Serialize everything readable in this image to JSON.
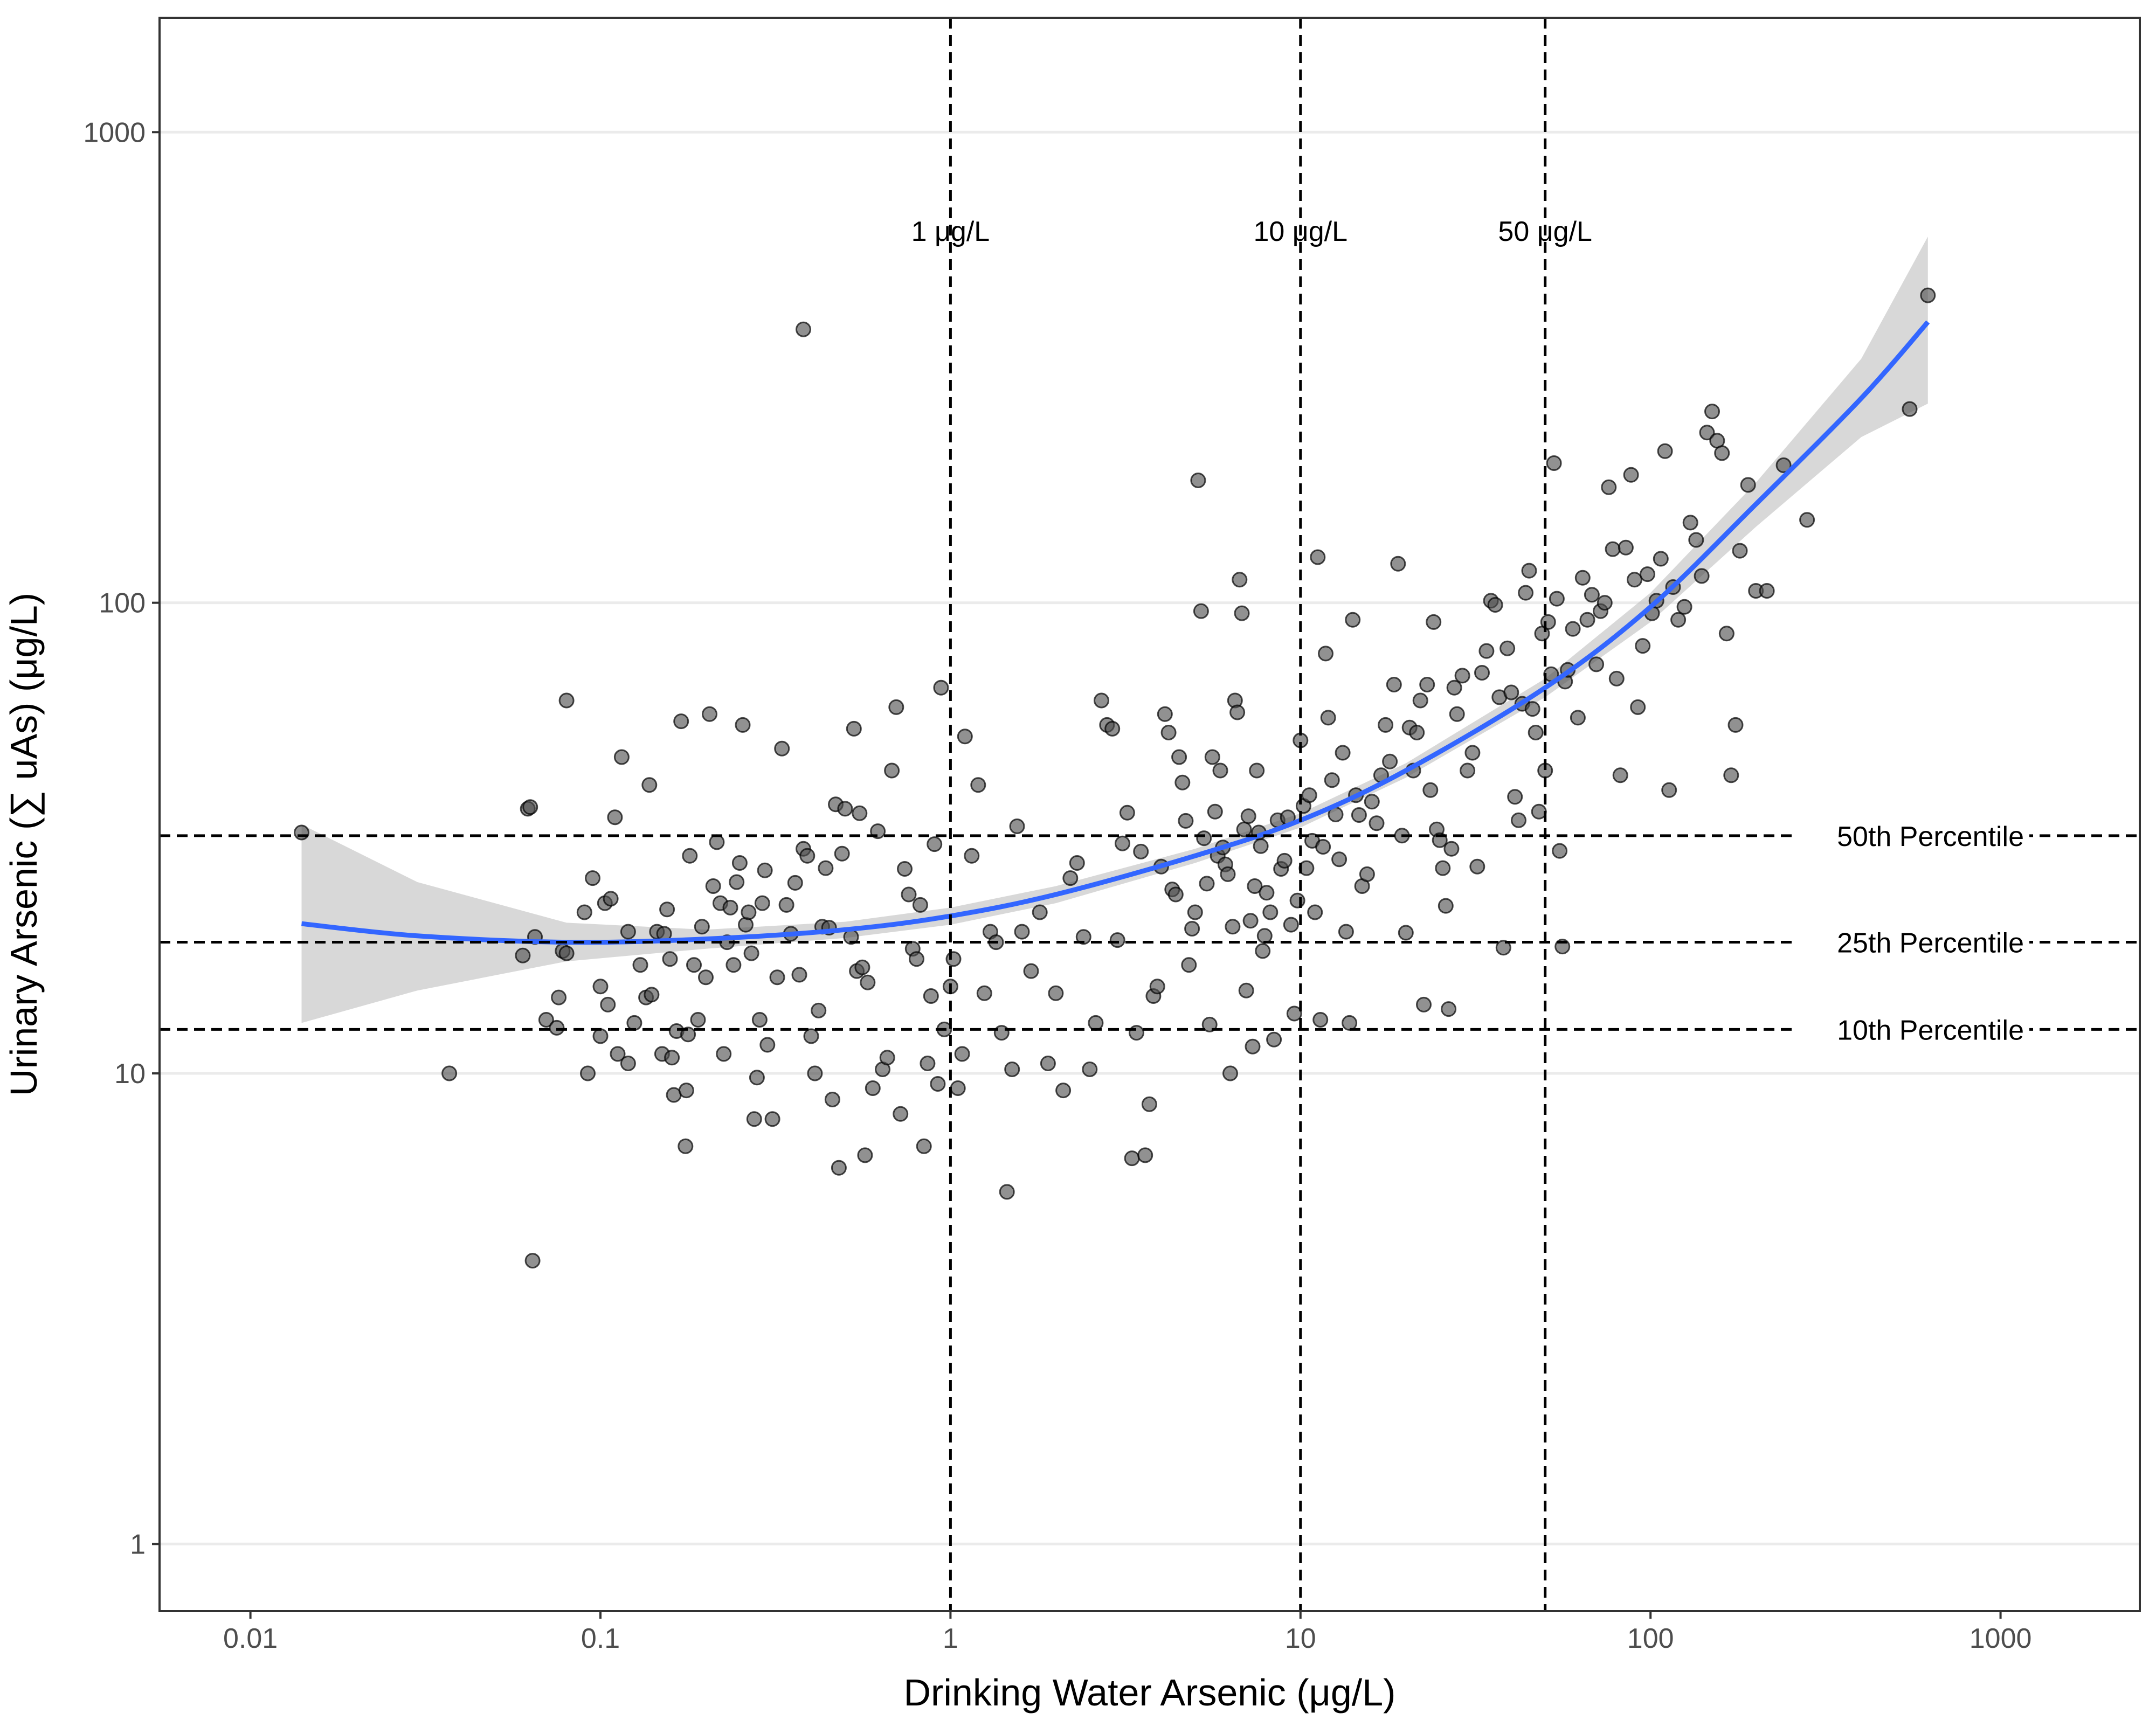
{
  "chart_data": {
    "type": "scatter",
    "xlabel": "Drinking Water Arsenic (μg/L)",
    "ylabel": "Urinary Arsenic (∑ uAs) (μg/L)",
    "x_scale": "log10",
    "y_scale": "log10",
    "xlim": [
      0.0055,
      2500
    ],
    "ylim": [
      0.72,
      1750
    ],
    "x_ticks": [
      0.01,
      0.1,
      1,
      10,
      100,
      1000
    ],
    "x_tick_labels": [
      "0.01",
      "0.1",
      "1",
      "10",
      "100",
      "1000"
    ],
    "y_ticks": [
      1,
      10,
      100,
      1000
    ],
    "y_tick_labels": [
      "1",
      "10",
      "100",
      "1000"
    ],
    "grid": "horizontal major",
    "reference_lines": {
      "vertical": [
        {
          "x": 1,
          "label": "1 μg/L"
        },
        {
          "x": 10,
          "label": "10 μg/L"
        },
        {
          "x": 50,
          "label": "50 μg/L"
        }
      ],
      "horizontal": [
        {
          "y": 32,
          "label": "50th Percentile"
        },
        {
          "y": 19,
          "label": "25th Percentile"
        },
        {
          "y": 12.4,
          "label": "10th Percentile"
        }
      ]
    },
    "colors": {
      "points": "#4d4d4d",
      "fit": "#3366ff",
      "band": "#bebebe",
      "ref": "#000000",
      "grid": "#ebebeb"
    },
    "fit": {
      "x": [
        0.014,
        0.03,
        0.08,
        0.2,
        0.5,
        1,
        2,
        5,
        10,
        20,
        50,
        100,
        200,
        400,
        620
      ],
      "y": [
        20.8,
        19.6,
        19.0,
        19.3,
        20.2,
        21.6,
        24.0,
        29.0,
        34.5,
        44.0,
        66.0,
        98.0,
        162.0,
        272.0,
        395.0
      ],
      "lower": [
        12.8,
        15.0,
        17.3,
        18.4,
        19.4,
        20.7,
        23.0,
        28.0,
        33.3,
        42.5,
        63.0,
        91.0,
        145.0,
        225.0,
        265.0
      ],
      "upper": [
        33.8,
        25.5,
        20.9,
        20.2,
        21.0,
        22.5,
        25.0,
        30.0,
        35.7,
        45.6,
        69.0,
        105.0,
        180.0,
        330.0,
        600.0
      ]
    },
    "points": [
      [
        0.014,
        32.5
      ],
      [
        0.037,
        10
      ],
      [
        0.06,
        17.8
      ],
      [
        0.062,
        36.5
      ],
      [
        0.063,
        36.8
      ],
      [
        0.064,
        4
      ],
      [
        0.065,
        19.5
      ],
      [
        0.07,
        13
      ],
      [
        0.075,
        12.5
      ],
      [
        0.076,
        14.5
      ],
      [
        0.078,
        18.2
      ],
      [
        0.08,
        62
      ],
      [
        0.08,
        18
      ],
      [
        0.09,
        22
      ],
      [
        0.092,
        10
      ],
      [
        0.095,
        26
      ],
      [
        0.1,
        15.3
      ],
      [
        0.1,
        12
      ],
      [
        0.103,
        23
      ],
      [
        0.105,
        14
      ],
      [
        0.107,
        23.5
      ],
      [
        0.11,
        35
      ],
      [
        0.112,
        11
      ],
      [
        0.115,
        47
      ],
      [
        0.12,
        10.5
      ],
      [
        0.12,
        20
      ],
      [
        0.125,
        12.8
      ],
      [
        0.13,
        17
      ],
      [
        0.135,
        14.5
      ],
      [
        0.138,
        41
      ],
      [
        0.14,
        14.7
      ],
      [
        0.145,
        20
      ],
      [
        0.15,
        11
      ],
      [
        0.152,
        19.8
      ],
      [
        0.155,
        22.3
      ],
      [
        0.158,
        17.5
      ],
      [
        0.16,
        10.8
      ],
      [
        0.162,
        9
      ],
      [
        0.165,
        12.3
      ],
      [
        0.17,
        56
      ],
      [
        0.175,
        7
      ],
      [
        0.176,
        9.2
      ],
      [
        0.178,
        12.1
      ],
      [
        0.18,
        29
      ],
      [
        0.185,
        17
      ],
      [
        0.19,
        13
      ],
      [
        0.195,
        20.5
      ],
      [
        0.2,
        16
      ],
      [
        0.205,
        58
      ],
      [
        0.21,
        25
      ],
      [
        0.215,
        31
      ],
      [
        0.22,
        23
      ],
      [
        0.225,
        11
      ],
      [
        0.23,
        19
      ],
      [
        0.235,
        22.5
      ],
      [
        0.24,
        17
      ],
      [
        0.245,
        25.5
      ],
      [
        0.25,
        28
      ],
      [
        0.255,
        55
      ],
      [
        0.26,
        20.7
      ],
      [
        0.265,
        22
      ],
      [
        0.27,
        18
      ],
      [
        0.275,
        8
      ],
      [
        0.28,
        9.8
      ],
      [
        0.285,
        13
      ],
      [
        0.29,
        23
      ],
      [
        0.295,
        27
      ],
      [
        0.3,
        11.5
      ],
      [
        0.31,
        8
      ],
      [
        0.32,
        16
      ],
      [
        0.33,
        49
      ],
      [
        0.34,
        22.8
      ],
      [
        0.35,
        19.8
      ],
      [
        0.36,
        25.4
      ],
      [
        0.37,
        16.2
      ],
      [
        0.38,
        381
      ],
      [
        0.38,
        30
      ],
      [
        0.39,
        29
      ],
      [
        0.4,
        12
      ],
      [
        0.41,
        10
      ],
      [
        0.42,
        13.6
      ],
      [
        0.43,
        20.5
      ],
      [
        0.44,
        27.3
      ],
      [
        0.45,
        20.4
      ],
      [
        0.46,
        8.8
      ],
      [
        0.47,
        37.3
      ],
      [
        0.48,
        6.3
      ],
      [
        0.49,
        29.3
      ],
      [
        0.5,
        36.5
      ],
      [
        0.52,
        19.5
      ],
      [
        0.53,
        54
      ],
      [
        0.54,
        16.5
      ],
      [
        0.55,
        35.7
      ],
      [
        0.56,
        16.8
      ],
      [
        0.57,
        6.7
      ],
      [
        0.58,
        15.6
      ],
      [
        0.6,
        9.3
      ],
      [
        0.62,
        32.7
      ],
      [
        0.64,
        10.2
      ],
      [
        0.66,
        10.8
      ],
      [
        0.68,
        44
      ],
      [
        0.7,
        60
      ],
      [
        0.72,
        8.2
      ],
      [
        0.74,
        27.2
      ],
      [
        0.76,
        24
      ],
      [
        0.78,
        18.4
      ],
      [
        0.8,
        17.5
      ],
      [
        0.82,
        22.8
      ],
      [
        0.84,
        7
      ],
      [
        0.86,
        10.5
      ],
      [
        0.88,
        14.6
      ],
      [
        0.9,
        30.7
      ],
      [
        0.92,
        9.5
      ],
      [
        0.94,
        66
      ],
      [
        0.96,
        12.4
      ],
      [
        1.0,
        15.3
      ],
      [
        1.02,
        17.5
      ],
      [
        1.05,
        9.3
      ],
      [
        1.08,
        11
      ],
      [
        1.1,
        52
      ],
      [
        1.15,
        29
      ],
      [
        1.2,
        41
      ],
      [
        1.25,
        14.8
      ],
      [
        1.3,
        20
      ],
      [
        1.35,
        19
      ],
      [
        1.4,
        12.2
      ],
      [
        1.45,
        5.6
      ],
      [
        1.5,
        10.2
      ],
      [
        1.55,
        33.5
      ],
      [
        1.6,
        20
      ],
      [
        1.7,
        16.5
      ],
      [
        1.8,
        22
      ],
      [
        1.9,
        10.5
      ],
      [
        2.0,
        14.8
      ],
      [
        2.1,
        9.2
      ],
      [
        2.2,
        26
      ],
      [
        2.3,
        28
      ],
      [
        2.4,
        19.5
      ],
      [
        2.5,
        10.2
      ],
      [
        2.6,
        12.8
      ],
      [
        2.7,
        62
      ],
      [
        2.8,
        55
      ],
      [
        2.9,
        54
      ],
      [
        3.0,
        19.2
      ],
      [
        3.1,
        30.8
      ],
      [
        3.2,
        35.8
      ],
      [
        3.3,
        6.6
      ],
      [
        3.4,
        12.2
      ],
      [
        3.5,
        29.6
      ],
      [
        3.6,
        6.7
      ],
      [
        3.7,
        8.6
      ],
      [
        3.8,
        14.6
      ],
      [
        3.9,
        15.3
      ],
      [
        4.0,
        27.5
      ],
      [
        4.1,
        58
      ],
      [
        4.2,
        53
      ],
      [
        4.3,
        24.6
      ],
      [
        4.4,
        24
      ],
      [
        4.5,
        47
      ],
      [
        4.6,
        41.5
      ],
      [
        4.7,
        34.4
      ],
      [
        4.8,
        17
      ],
      [
        4.9,
        20.3
      ],
      [
        5.0,
        22
      ],
      [
        5.1,
        182
      ],
      [
        5.2,
        96
      ],
      [
        5.3,
        31.6
      ],
      [
        5.4,
        25.3
      ],
      [
        5.5,
        12.7
      ],
      [
        5.6,
        47
      ],
      [
        5.7,
        36
      ],
      [
        5.8,
        29
      ],
      [
        5.9,
        44
      ],
      [
        6.0,
        30.2
      ],
      [
        6.1,
        27.8
      ],
      [
        6.2,
        26.5
      ],
      [
        6.3,
        10
      ],
      [
        6.4,
        20.5
      ],
      [
        6.5,
        62
      ],
      [
        6.6,
        58.5
      ],
      [
        6.7,
        112
      ],
      [
        6.8,
        95
      ],
      [
        6.9,
        33
      ],
      [
        7.0,
        15
      ],
      [
        7.1,
        35.2
      ],
      [
        7.2,
        21.1
      ],
      [
        7.3,
        11.4
      ],
      [
        7.4,
        25
      ],
      [
        7.5,
        44
      ],
      [
        7.6,
        32.5
      ],
      [
        7.7,
        30.4
      ],
      [
        7.8,
        18.2
      ],
      [
        7.9,
        19.6
      ],
      [
        8.0,
        24.2
      ],
      [
        8.2,
        22
      ],
      [
        8.4,
        11.8
      ],
      [
        8.6,
        34.5
      ],
      [
        8.8,
        27.2
      ],
      [
        9.0,
        28.3
      ],
      [
        9.2,
        35
      ],
      [
        9.4,
        20.7
      ],
      [
        9.6,
        13.4
      ],
      [
        9.8,
        23.3
      ],
      [
        10.0,
        51
      ],
      [
        10.2,
        37
      ],
      [
        10.4,
        27.3
      ],
      [
        10.6,
        39
      ],
      [
        10.8,
        31.2
      ],
      [
        11.0,
        22
      ],
      [
        11.2,
        125
      ],
      [
        11.4,
        13
      ],
      [
        11.6,
        30.3
      ],
      [
        11.8,
        78
      ],
      [
        12.0,
        57
      ],
      [
        12.3,
        42
      ],
      [
        12.6,
        35.5
      ],
      [
        12.9,
        28.5
      ],
      [
        13.2,
        48
      ],
      [
        13.5,
        20
      ],
      [
        13.8,
        12.8
      ],
      [
        14.1,
        92
      ],
      [
        14.4,
        39
      ],
      [
        14.7,
        35.4
      ],
      [
        15.0,
        25
      ],
      [
        15.5,
        26.5
      ],
      [
        16.0,
        37.8
      ],
      [
        16.5,
        34
      ],
      [
        17.0,
        43
      ],
      [
        17.5,
        55
      ],
      [
        18.0,
        46
      ],
      [
        18.5,
        67
      ],
      [
        19.0,
        121
      ],
      [
        19.5,
        32
      ],
      [
        20.0,
        19.9
      ],
      [
        20.5,
        54.3
      ],
      [
        21.0,
        44
      ],
      [
        21.5,
        53
      ],
      [
        22.0,
        62
      ],
      [
        22.5,
        14
      ],
      [
        23.0,
        67
      ],
      [
        23.5,
        40
      ],
      [
        24.0,
        91
      ],
      [
        24.5,
        33
      ],
      [
        25.0,
        31.3
      ],
      [
        25.5,
        27.3
      ],
      [
        26.0,
        22.7
      ],
      [
        26.5,
        13.7
      ],
      [
        27.0,
        30
      ],
      [
        27.5,
        66
      ],
      [
        28.0,
        58
      ],
      [
        29.0,
        70
      ],
      [
        30.0,
        44
      ],
      [
        31.0,
        48
      ],
      [
        32.0,
        27.5
      ],
      [
        33.0,
        71
      ],
      [
        34.0,
        79
      ],
      [
        35.0,
        101
      ],
      [
        36.0,
        99
      ],
      [
        37.0,
        63
      ],
      [
        38.0,
        18.5
      ],
      [
        39.0,
        80
      ],
      [
        40.0,
        64.5
      ],
      [
        41.0,
        38.7
      ],
      [
        42.0,
        34.5
      ],
      [
        43.0,
        61
      ],
      [
        44.0,
        105
      ],
      [
        45.0,
        117
      ],
      [
        46.0,
        59.5
      ],
      [
        47.0,
        53
      ],
      [
        48.0,
        36
      ],
      [
        49.0,
        86
      ],
      [
        50.0,
        44
      ],
      [
        51.0,
        91
      ],
      [
        52.0,
        70.5
      ],
      [
        53.0,
        198
      ],
      [
        54.0,
        102
      ],
      [
        55.0,
        29.7
      ],
      [
        56.0,
        18.6
      ],
      [
        57.0,
        68
      ],
      [
        58.0,
        72
      ],
      [
        60.0,
        88
      ],
      [
        62.0,
        57
      ],
      [
        64.0,
        113
      ],
      [
        66.0,
        92
      ],
      [
        68.0,
        104
      ],
      [
        70.0,
        74
      ],
      [
        72.0,
        96
      ],
      [
        74.0,
        100
      ],
      [
        76.0,
        176
      ],
      [
        78.0,
        130
      ],
      [
        80.0,
        69
      ],
      [
        82.0,
        43
      ],
      [
        85.0,
        131
      ],
      [
        88.0,
        187
      ],
      [
        90.0,
        112
      ],
      [
        92.0,
        60
      ],
      [
        95.0,
        81
      ],
      [
        98.0,
        115
      ],
      [
        101.0,
        95
      ],
      [
        104.0,
        101
      ],
      [
        107.0,
        124
      ],
      [
        110.0,
        210
      ],
      [
        113.0,
        40
      ],
      [
        116.0,
        108
      ],
      [
        120.0,
        92
      ],
      [
        125.0,
        98
      ],
      [
        130.0,
        148
      ],
      [
        135.0,
        136
      ],
      [
        140.0,
        114
      ],
      [
        145.0,
        230
      ],
      [
        150.0,
        255
      ],
      [
        155.0,
        221
      ],
      [
        160.0,
        208
      ],
      [
        165.0,
        86
      ],
      [
        170.0,
        43
      ],
      [
        175.0,
        55
      ],
      [
        180.0,
        129
      ],
      [
        190.0,
        178
      ],
      [
        200.0,
        106
      ],
      [
        215.0,
        106
      ],
      [
        240.0,
        196
      ],
      [
        280.0,
        150
      ],
      [
        550.0,
        258
      ],
      [
        620.0,
        450
      ]
    ]
  }
}
